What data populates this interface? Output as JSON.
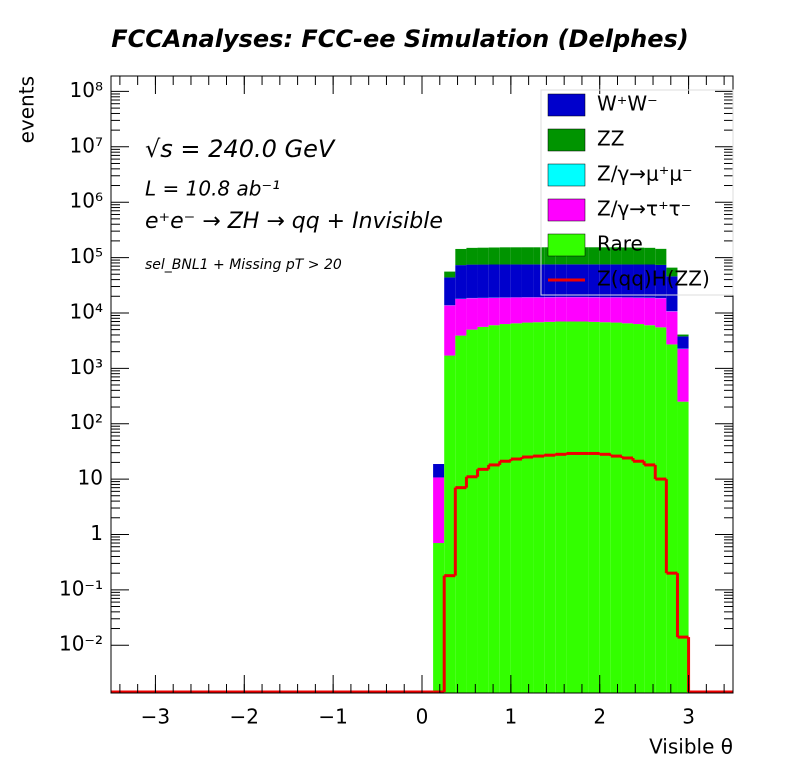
{
  "chart_data": {
    "type": "stacked_histogram",
    "title": "FCCAnalyses: FCC-ee Simulation (Delphes)",
    "x_label": "Visible θ",
    "y_label": "events",
    "annotations": [
      "√s = 240.0 GeV",
      "L = 10.8 ab⁻¹",
      "e⁺e⁻ → ZH → qq + Invisible",
      "sel_BNL1 + Missing pT > 20"
    ],
    "log_y": true,
    "bins": [
      0.125,
      0.25,
      0.375,
      0.5,
      0.625,
      0.75,
      0.875,
      1.0,
      1.125,
      1.25,
      1.375,
      1.5,
      1.625,
      1.75,
      1.875,
      2.0,
      2.125,
      2.25,
      2.375,
      2.5,
      2.625,
      2.75,
      2.875,
      3.0
    ],
    "series": [
      {
        "name": "Rare",
        "color": "#33ff00",
        "values": [
          0.7,
          1700,
          3900,
          5000,
          5600,
          6000,
          6300,
          6500,
          6700,
          6800,
          6900,
          7000,
          7000,
          7000,
          6900,
          6800,
          6700,
          6500,
          6300,
          6000,
          5500,
          2700,
          250
        ]
      },
      {
        "name": "Z/γ→τ⁺τ⁻",
        "color": "#ff00ff",
        "values": [
          10,
          12000,
          14000,
          13500,
          13000,
          12800,
          12600,
          12500,
          12400,
          12300,
          12300,
          12300,
          12300,
          12300,
          12300,
          12300,
          12400,
          12500,
          12600,
          12800,
          13000,
          8000,
          2000
        ]
      },
      {
        "name": "Z/γ→μ⁺μ⁻",
        "color": "#00ffff",
        "values": [
          0,
          100,
          150,
          150,
          150,
          150,
          150,
          150,
          150,
          150,
          150,
          150,
          150,
          150,
          150,
          150,
          150,
          150,
          150,
          150,
          150,
          100,
          20
        ]
      },
      {
        "name": "W⁺W⁻",
        "color": "#0000cc",
        "values": [
          8,
          30000,
          55000,
          56000,
          56000,
          56000,
          56000,
          56000,
          56000,
          56000,
          56000,
          56000,
          56000,
          56000,
          56000,
          56000,
          56000,
          56000,
          56000,
          56000,
          55000,
          35000,
          1500
        ]
      },
      {
        "name": "ZZ",
        "color": "#009400",
        "values": [
          0,
          12000,
          70000,
          75000,
          76000,
          77000,
          78000,
          78000,
          78000,
          78000,
          78000,
          78000,
          78000,
          78000,
          78000,
          78000,
          78000,
          77000,
          76000,
          75000,
          70000,
          20000,
          300
        ]
      }
    ],
    "signal": {
      "name": "Z(qq)H(ZZ)",
      "color": "#ee0000",
      "values": [
        0,
        0.18,
        7,
        11,
        15,
        18,
        21,
        23,
        25,
        26,
        27,
        28,
        29,
        29,
        29,
        28,
        26,
        24,
        21,
        18,
        10,
        0.2,
        0.014
      ]
    },
    "legend_order": [
      3,
      4,
      2,
      1,
      0
    ],
    "legend": "upper right",
    "xlim": [
      -3.5,
      3.5
    ],
    "ylim": [
      0.00137,
      190000000
    ],
    "xticks": [
      {
        "value": -3,
        "label": "−3"
      },
      {
        "value": -2,
        "label": "−2"
      },
      {
        "value": -1,
        "label": "−1"
      },
      0,
      1,
      2,
      3
    ],
    "yticks": [
      {
        "value": 0.01,
        "label": "10⁻²"
      },
      {
        "value": 0.1,
        "label": "10⁻¹"
      },
      1,
      10,
      {
        "value": 100,
        "label": "10²"
      },
      {
        "value": 1000,
        "label": "10³"
      },
      {
        "value": 10000,
        "label": "10⁴"
      },
      {
        "value": 100000,
        "label": "10⁵"
      },
      {
        "value": 1000000,
        "label": "10⁶"
      },
      {
        "value": 10000000,
        "label": "10⁷"
      },
      {
        "value": 100000000,
        "label": "10⁸"
      }
    ]
  }
}
